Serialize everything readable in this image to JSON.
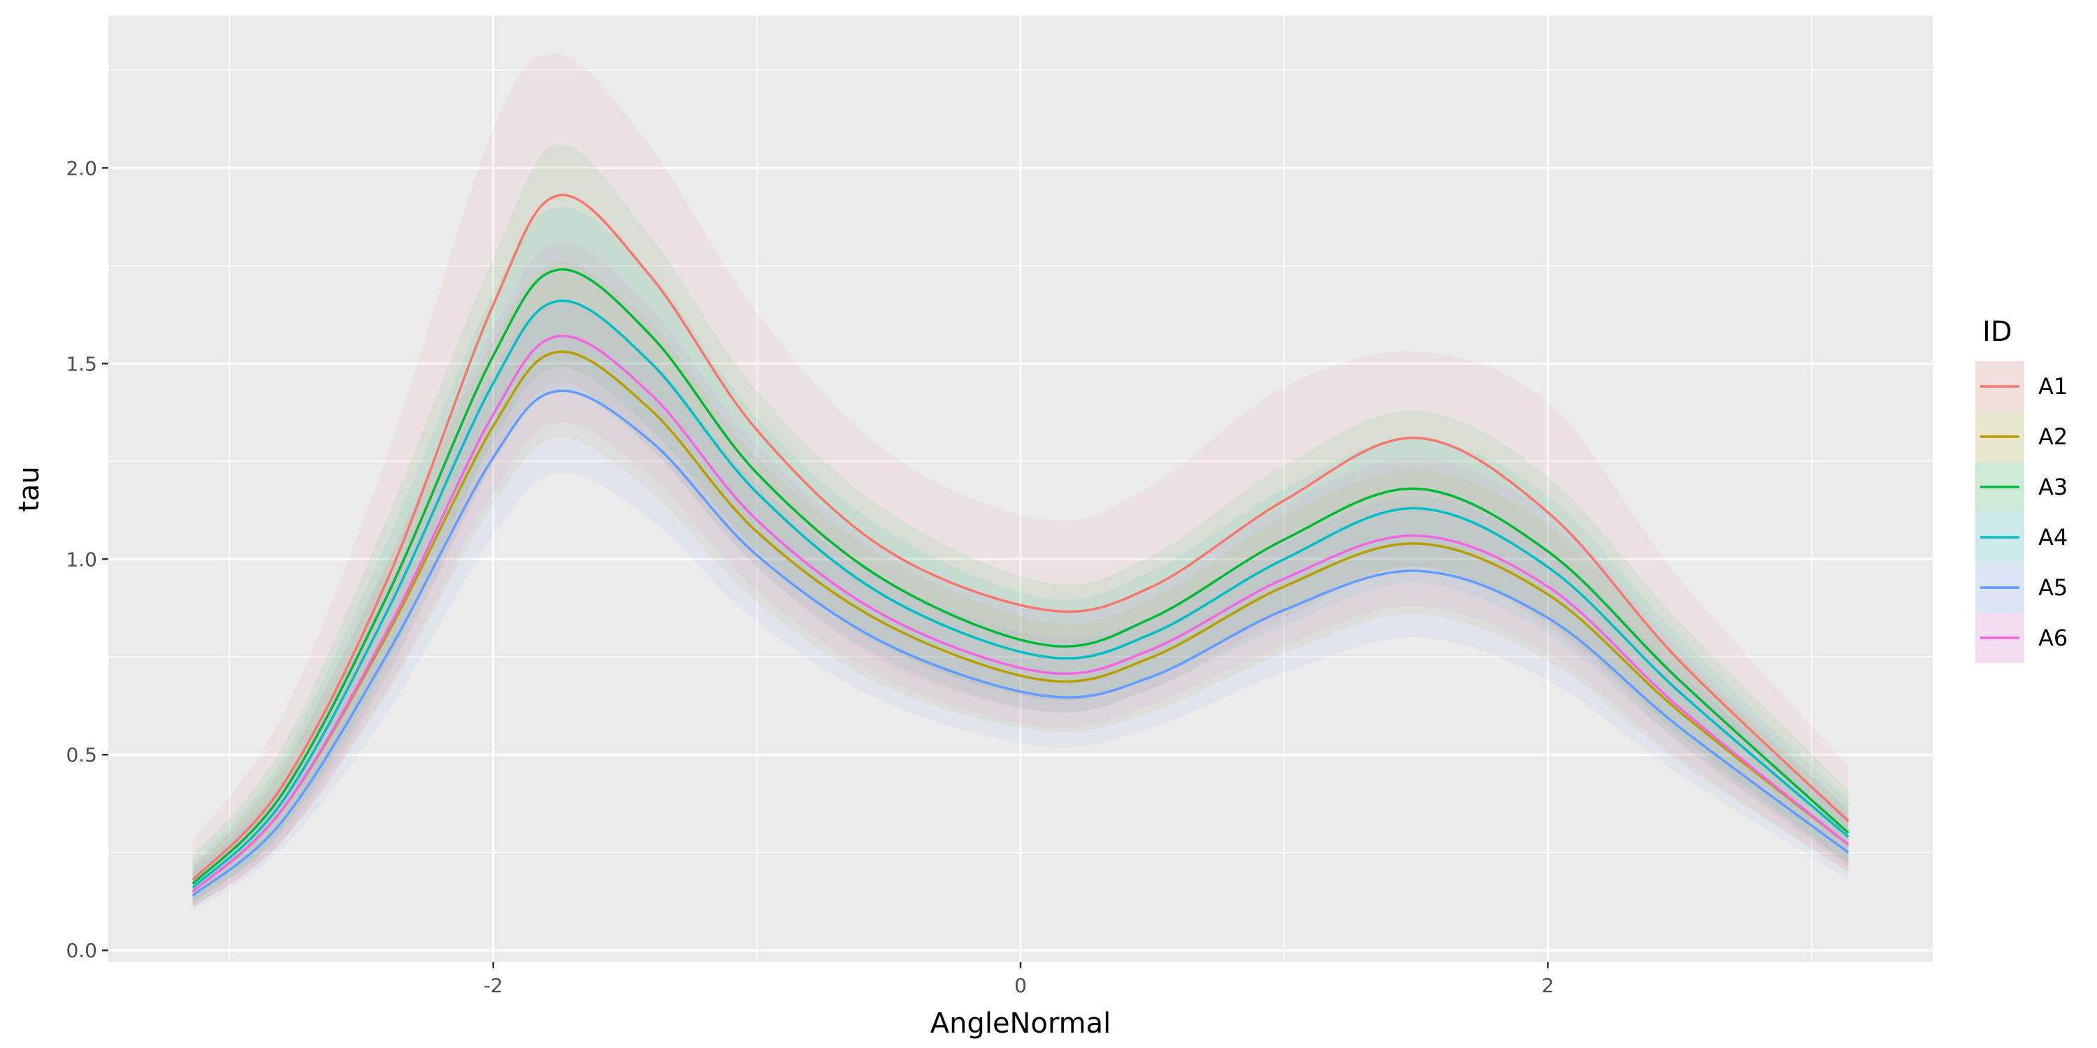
{
  "chart_data": {
    "type": "line",
    "xlabel": "AngleNormal",
    "ylabel": "tau",
    "xlim": [
      -3.46,
      3.46
    ],
    "ylim": [
      -0.03,
      2.39
    ],
    "xticks": [
      -2,
      0,
      2
    ],
    "yticks": [
      0.0,
      0.5,
      1.0,
      1.5,
      2.0
    ],
    "xtick_labels": [
      "-2",
      "0",
      "2"
    ],
    "ytick_labels": [
      "0.0",
      "0.5",
      "1.0",
      "1.5",
      "2.0"
    ],
    "grid": true,
    "legend": {
      "title": "ID",
      "position": "right"
    },
    "x": [
      -3.14,
      -2.8,
      -2.4,
      -2.0,
      -1.75,
      -1.4,
      -1.0,
      -0.5,
      0.1,
      0.5,
      1.0,
      1.5,
      2.0,
      2.5,
      3.14
    ],
    "series": [
      {
        "name": "A1",
        "color": "#F8766D",
        "values": [
          0.18,
          0.42,
          0.95,
          1.65,
          1.93,
          1.72,
          1.33,
          1.02,
          0.87,
          0.93,
          1.15,
          1.31,
          1.12,
          0.74,
          0.33
        ],
        "lower": [
          0.11,
          0.28,
          0.7,
          1.24,
          1.45,
          1.28,
          0.98,
          0.73,
          0.61,
          0.67,
          0.85,
          0.98,
          0.83,
          0.53,
          0.21
        ],
        "upper": [
          0.28,
          0.6,
          1.27,
          2.1,
          2.29,
          2.05,
          1.63,
          1.27,
          1.1,
          1.19,
          1.44,
          1.53,
          1.4,
          0.95,
          0.47
        ]
      },
      {
        "name": "A2",
        "color": "#B79F00",
        "values": [
          0.15,
          0.36,
          0.81,
          1.34,
          1.53,
          1.38,
          1.07,
          0.83,
          0.69,
          0.75,
          0.93,
          1.04,
          0.91,
          0.61,
          0.27
        ],
        "lower": [
          0.11,
          0.28,
          0.66,
          1.14,
          1.31,
          1.17,
          0.89,
          0.67,
          0.56,
          0.61,
          0.76,
          0.86,
          0.74,
          0.48,
          0.2
        ],
        "upper": [
          0.21,
          0.47,
          0.99,
          1.56,
          1.76,
          1.6,
          1.26,
          1.0,
          0.84,
          0.9,
          1.11,
          1.23,
          1.09,
          0.75,
          0.36
        ]
      },
      {
        "name": "A3",
        "color": "#00BA38",
        "values": [
          0.17,
          0.4,
          0.91,
          1.52,
          1.74,
          1.57,
          1.22,
          0.94,
          0.78,
          0.85,
          1.05,
          1.18,
          1.02,
          0.69,
          0.3
        ],
        "lower": [
          0.12,
          0.31,
          0.74,
          1.3,
          1.49,
          1.33,
          1.02,
          0.77,
          0.64,
          0.7,
          0.87,
          0.98,
          0.84,
          0.55,
          0.22
        ],
        "upper": [
          0.24,
          0.52,
          1.11,
          1.77,
          2.06,
          1.82,
          1.43,
          1.12,
          0.94,
          1.01,
          1.24,
          1.38,
          1.21,
          0.84,
          0.41
        ]
      },
      {
        "name": "A4",
        "color": "#00BFC4",
        "values": [
          0.16,
          0.38,
          0.87,
          1.45,
          1.66,
          1.5,
          1.17,
          0.9,
          0.75,
          0.81,
          1.0,
          1.13,
          0.98,
          0.66,
          0.29
        ],
        "lower": [
          0.12,
          0.3,
          0.71,
          1.25,
          1.43,
          1.28,
          0.98,
          0.74,
          0.61,
          0.67,
          0.83,
          0.94,
          0.81,
          0.53,
          0.22
        ],
        "upper": [
          0.22,
          0.49,
          1.05,
          1.68,
          1.9,
          1.73,
          1.36,
          1.07,
          0.9,
          0.97,
          1.18,
          1.31,
          1.16,
          0.8,
          0.38
        ]
      },
      {
        "name": "A5",
        "color": "#619CFF",
        "values": [
          0.14,
          0.33,
          0.76,
          1.26,
          1.43,
          1.3,
          1.01,
          0.78,
          0.65,
          0.7,
          0.87,
          0.97,
          0.85,
          0.57,
          0.25
        ],
        "lower": [
          0.1,
          0.26,
          0.61,
          1.06,
          1.22,
          1.1,
          0.84,
          0.63,
          0.52,
          0.57,
          0.71,
          0.8,
          0.69,
          0.45,
          0.18
        ],
        "upper": [
          0.2,
          0.43,
          0.93,
          1.48,
          1.66,
          1.51,
          1.19,
          0.94,
          0.8,
          0.85,
          1.04,
          1.16,
          1.02,
          0.71,
          0.34
        ]
      },
      {
        "name": "A6",
        "color": "#F564E3",
        "values": [
          0.15,
          0.36,
          0.82,
          1.37,
          1.57,
          1.42,
          1.1,
          0.85,
          0.71,
          0.77,
          0.95,
          1.06,
          0.93,
          0.62,
          0.27
        ],
        "lower": [
          0.11,
          0.28,
          0.67,
          1.17,
          1.35,
          1.21,
          0.92,
          0.69,
          0.57,
          0.63,
          0.78,
          0.88,
          0.76,
          0.49,
          0.2
        ],
        "upper": [
          0.21,
          0.46,
          1.0,
          1.59,
          1.81,
          1.64,
          1.29,
          1.02,
          0.87,
          0.93,
          1.14,
          1.26,
          1.12,
          0.77,
          0.36
        ]
      }
    ]
  }
}
